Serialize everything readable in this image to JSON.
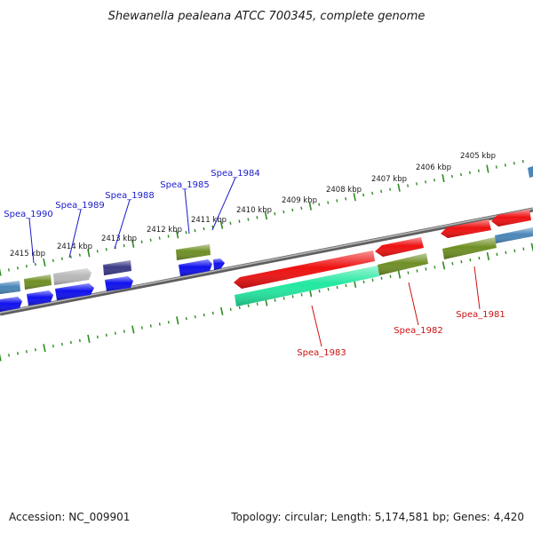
{
  "title": "Shewanella pealeana ATCC 700345, complete genome",
  "footer": {
    "accession": "Accession: NC_009901",
    "summary": "Topology: circular; Length: 5,174,581 bp; Genes: 4,420"
  },
  "colors": {
    "background": "#ffffff",
    "backbone": "#8a8a8a",
    "tick": "#2e8b22",
    "forward_label": "#1a1acc",
    "reverse_label": "#cc1111",
    "gene_red": "#ee1111",
    "gene_green": "#6f8f25",
    "gene_blue": "#1010ee",
    "gene_steel": "#4a86b8",
    "gene_gray": "#b8b8b8",
    "gene_indigo": "#3b3a86",
    "gene_aqua": "#22e8a0"
  },
  "ticks": [
    {
      "label": "2405 kbp"
    },
    {
      "label": "2406 kbp"
    },
    {
      "label": "2407 kbp"
    },
    {
      "label": "2408 kbp"
    },
    {
      "label": "2409 kbp"
    },
    {
      "label": "2410 kbp"
    },
    {
      "label": "2411 kbp"
    },
    {
      "label": "2412 kbp"
    },
    {
      "label": "2413 kbp"
    },
    {
      "label": "2414 kbp"
    },
    {
      "label": "2415 kbp"
    }
  ],
  "genes_upper": [
    {
      "label": "Spea_1990"
    },
    {
      "label": "Spea_1989"
    },
    {
      "label": "Spea_1988"
    },
    {
      "label": "Spea_1985"
    },
    {
      "label": "Spea_1984"
    }
  ],
  "genes_lower": [
    {
      "label": "Spea_1983"
    },
    {
      "label": "Spea_1982"
    },
    {
      "label": "Spea_1981"
    }
  ]
}
